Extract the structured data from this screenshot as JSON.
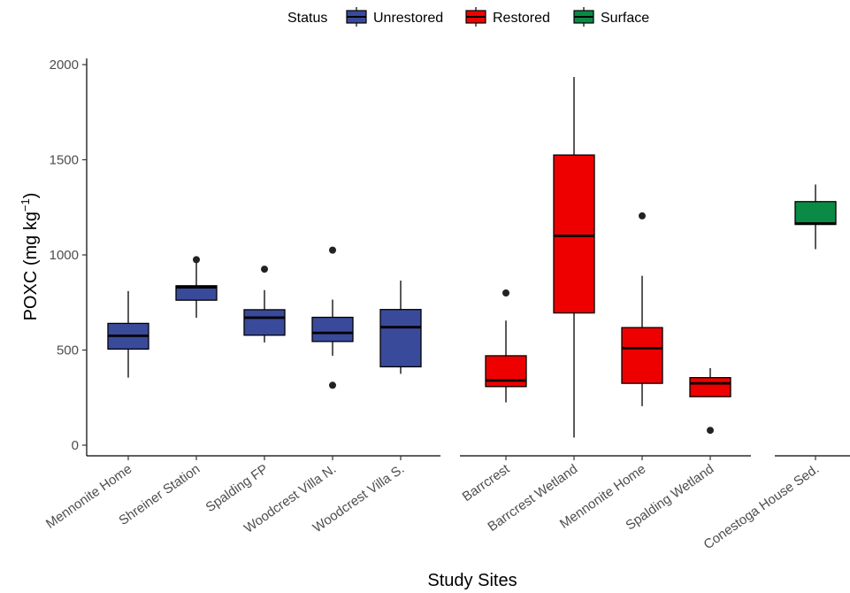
{
  "chart_data": {
    "type": "boxplot",
    "xlabel": "Study Sites",
    "ylabel_main": "POXC (mg kg",
    "ylabel_sup": "−1",
    "ylabel_close": ")",
    "ylim": [
      0,
      2000
    ],
    "yticks": [
      "0",
      "500",
      "1000",
      "1500",
      "2000"
    ],
    "ytick_values": [
      0,
      500,
      1000,
      1500,
      2000
    ],
    "grid": false,
    "legend": {
      "title": "Status",
      "position": "top",
      "items": [
        {
          "label": "Unrestored",
          "color": "#3A4A9B"
        },
        {
          "label": "Restored",
          "color": "#EE0000"
        },
        {
          "label": "Surface",
          "color": "#0B8A45"
        }
      ]
    },
    "panels": [
      {
        "status": "Unrestored",
        "color": "#3A4A9B",
        "boxes": [
          {
            "label": "Mennonite Home",
            "min": 355,
            "q1": 505,
            "median": 575,
            "q3": 640,
            "max": 810,
            "outliers": []
          },
          {
            "label": "Shreiner Station",
            "min": 670,
            "q1": 762,
            "median": 830,
            "q3": 838,
            "max": 975,
            "outliers": [
              975
            ]
          },
          {
            "label": "Spalding FP",
            "min": 540,
            "q1": 578,
            "median": 670,
            "q3": 712,
            "max": 815,
            "outliers": [
              925
            ]
          },
          {
            "label": "Woodcrest Villa N.",
            "min": 470,
            "q1": 545,
            "median": 590,
            "q3": 672,
            "max": 765,
            "outliers": [
              1025,
              315
            ]
          },
          {
            "label": "Woodcrest Villa S.",
            "min": 375,
            "q1": 412,
            "median": 620,
            "q3": 713,
            "max": 865,
            "outliers": []
          }
        ]
      },
      {
        "status": "Restored",
        "color": "#EE0000",
        "boxes": [
          {
            "label": "Barrcrest",
            "min": 225,
            "q1": 308,
            "median": 340,
            "q3": 470,
            "max": 655,
            "outliers": [
              800
            ]
          },
          {
            "label": "Barrcrest Wetland",
            "min": 40,
            "q1": 695,
            "median": 1100,
            "q3": 1525,
            "max": 1935,
            "outliers": []
          },
          {
            "label": "Mennonite Home",
            "min": 205,
            "q1": 325,
            "median": 510,
            "q3": 618,
            "max": 890,
            "outliers": [
              1205
            ]
          },
          {
            "label": "Spalding Wetland",
            "min": 255,
            "q1": 255,
            "median": 325,
            "q3": 355,
            "max": 405,
            "outliers": [
              78
            ]
          }
        ]
      },
      {
        "status": "Surface",
        "color": "#0B8A45",
        "boxes": [
          {
            "label": "Conestoga House Sed.",
            "min": 1030,
            "q1": 1160,
            "median": 1165,
            "q3": 1280,
            "max": 1370,
            "outliers": []
          }
        ]
      }
    ]
  }
}
